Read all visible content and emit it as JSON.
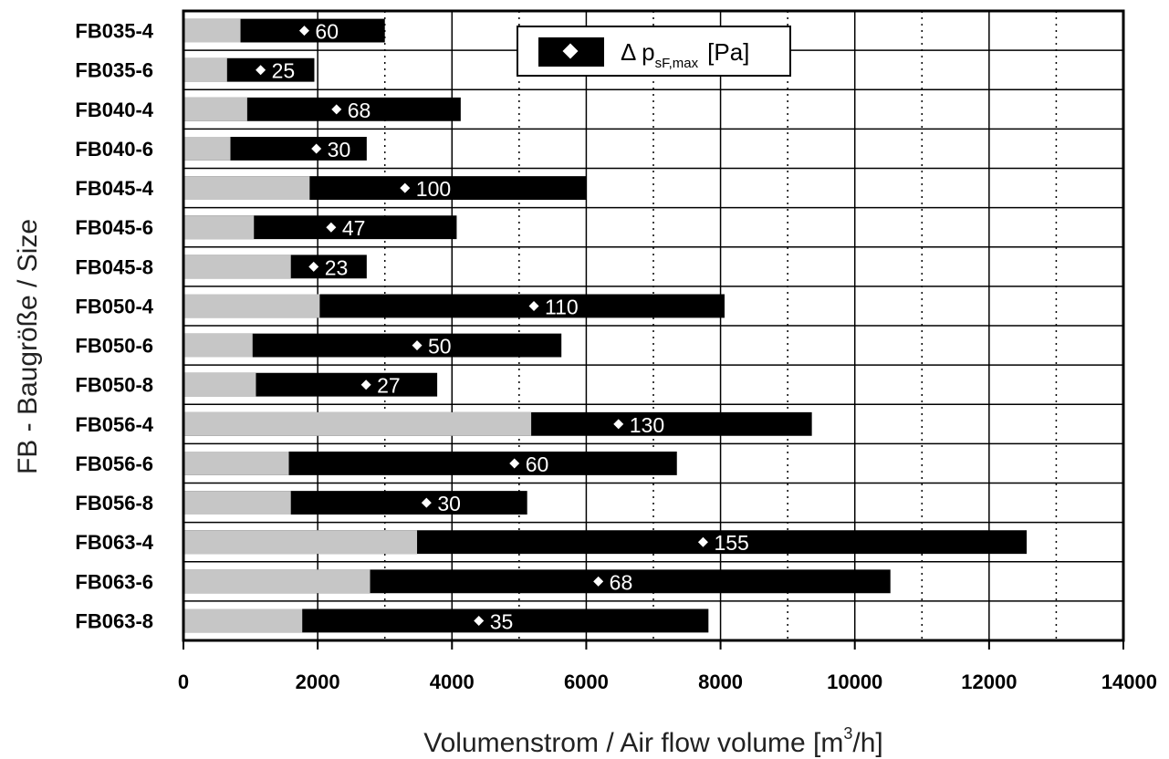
{
  "chart_data": {
    "type": "bar",
    "orientation": "horizontal",
    "stacked": true,
    "xlabel_main": "Volumenstrom / Air flow volume [m",
    "xlabel_sup": "3",
    "xlabel_end": "/h]",
    "ylabel": "FB - Baugröße / Size",
    "xlim": [
      0,
      14000
    ],
    "x_ticks": [
      0,
      2000,
      4000,
      6000,
      8000,
      10000,
      12000,
      14000
    ],
    "x_tick_labels": [
      "0",
      "2000",
      "4000",
      "6000",
      "8000",
      "10000",
      "12000",
      "14000"
    ],
    "grid_solid_x": [
      2000,
      4000,
      6000,
      8000,
      10000,
      12000
    ],
    "grid_dotted_x": [
      3000,
      5000,
      7000,
      9000,
      11000,
      13000
    ],
    "legend": {
      "position": "top-center",
      "symbol": "Δ p",
      "subscript": "sF,max",
      "unit": "[Pa]"
    },
    "colors": {
      "min_segment": "#c6c6c6",
      "range_segment": "#000000",
      "marker": "#ffffff"
    },
    "categories": [
      "FB035-4",
      "FB035-6",
      "FB040-4",
      "FB040-6",
      "FB045-4",
      "FB045-6",
      "FB045-8",
      "FB050-4",
      "FB050-6",
      "FB050-8",
      "FB056-4",
      "FB056-6",
      "FB056-8",
      "FB063-4",
      "FB063-6",
      "FB063-8"
    ],
    "min_flow": [
      850,
      650,
      950,
      700,
      1880,
      1050,
      1600,
      2030,
      1030,
      1080,
      5180,
      1570,
      1600,
      3480,
      2780,
      1770
    ],
    "max_flow": [
      3000,
      1950,
      4130,
      2730,
      6000,
      4070,
      2730,
      8060,
      5630,
      3780,
      9360,
      7350,
      5120,
      12560,
      10530,
      7820
    ],
    "marker_flow": [
      1800,
      1150,
      2280,
      1980,
      3300,
      2200,
      1940,
      5220,
      3480,
      2720,
      6480,
      4930,
      3620,
      7740,
      6180,
      4400
    ],
    "dp_labels": [
      "60",
      "25",
      "68",
      "30",
      "100",
      "47",
      "23",
      "110",
      "50",
      "27",
      "130",
      "60",
      "30",
      "155",
      "68",
      "35"
    ]
  }
}
